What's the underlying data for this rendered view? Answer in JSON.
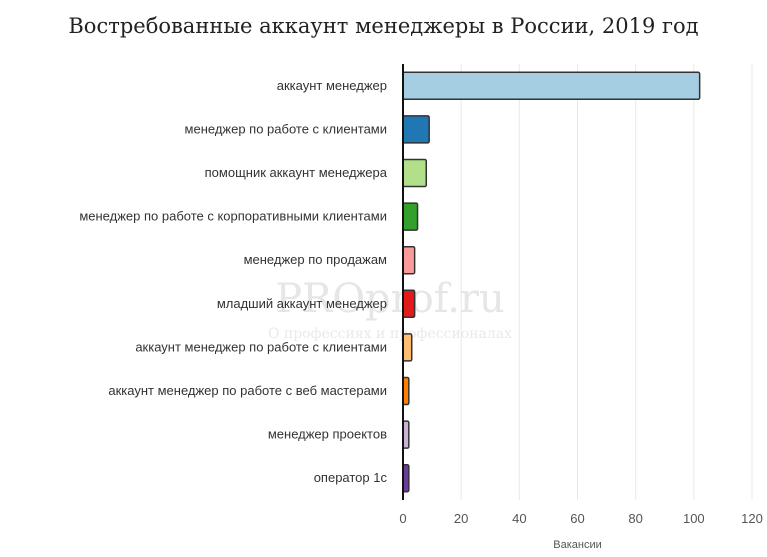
{
  "chart_data": {
    "type": "bar",
    "orientation": "horizontal",
    "title": "Востребованные аккаунт менеджеры в России, 2019 год",
    "xlabel": "Вакансии",
    "ylabel": "",
    "xlim": [
      0,
      120
    ],
    "ticks": [
      0,
      20,
      40,
      60,
      80,
      100,
      120
    ],
    "grid": true,
    "categories": [
      "аккаунт менеджер",
      "менеджер по работе с клиентами",
      "помощник аккаунт менеджера",
      "менеджер по работе с корпоративными клиентами",
      "менеджер по продажам",
      "младший аккаунт менеджер",
      "аккаунт менеджер по работе с клиентами",
      "аккаунт менеджер по работе с веб мастерами",
      "менеджер проектов",
      "оператор 1с"
    ],
    "values": [
      102,
      9,
      8,
      5,
      4,
      4,
      3,
      2,
      2,
      2
    ],
    "colors": [
      "#a6cee3",
      "#1f78b4",
      "#b2df8a",
      "#33a02c",
      "#fb9a99",
      "#e31a1c",
      "#fdbf6f",
      "#ff7f00",
      "#cab2d6",
      "#6a3d9a"
    ]
  },
  "watermark": {
    "main": "PROprof.ru",
    "sub": "О профессиях и профессионалах"
  }
}
